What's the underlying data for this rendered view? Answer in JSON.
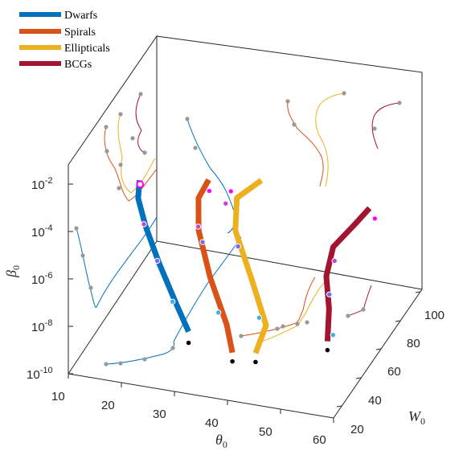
{
  "chart_data": {
    "type": "line",
    "title": "",
    "x_axis": {
      "label": "θ",
      "label_sub": "0",
      "range": [
        10,
        60
      ],
      "ticks": [
        "10",
        "20",
        "30",
        "40",
        "50",
        "60"
      ]
    },
    "y_axis": {
      "label": "W",
      "label_sub": "0",
      "range": [
        20,
        110
      ],
      "ticks": [
        "20",
        "40",
        "60",
        "80",
        "100"
      ]
    },
    "z_axis": {
      "label": "β",
      "label_sub": "0",
      "scale": "log",
      "ticks": [
        {
          "base": "10",
          "exp": "-10"
        },
        {
          "base": "10",
          "exp": "-8"
        },
        {
          "base": "10",
          "exp": "-6"
        },
        {
          "base": "10",
          "exp": "-4"
        },
        {
          "base": "10",
          "exp": "-2"
        }
      ]
    },
    "legend": {
      "position": "top-left",
      "entries": [
        {
          "name": "Dwarfs",
          "color": "#0072BD"
        },
        {
          "name": "Spirals",
          "color": "#D95319"
        },
        {
          "name": "Ellipticals",
          "color": "#EDB120"
        },
        {
          "name": "BCGs",
          "color": "#A2142F"
        }
      ]
    },
    "series": [
      {
        "name": "Dwarfs",
        "color": "#0072BD",
        "thick_points": [
          [
            31,
            29,
            -8
          ],
          [
            27.5,
            35,
            -7.3
          ],
          [
            23,
            42,
            -6.2
          ],
          [
            19,
            50,
            -5.3
          ],
          [
            16.5,
            56,
            -4.6
          ],
          [
            16,
            60,
            -4.1
          ]
        ],
        "dots": [
          [
            16.3,
            59,
            "#ff00ff"
          ],
          [
            18.5,
            51,
            "#cc44cc"
          ],
          [
            22.5,
            43,
            "#7b68ee"
          ],
          [
            26.5,
            37,
            "#40b0e0"
          ]
        ],
        "start": [
          31,
          29,
          -8.2
        ]
      },
      {
        "name": "Spirals",
        "color": "#D95319",
        "thick_points": [
          [
            40,
            25,
            -8.3
          ],
          [
            38,
            30,
            -7.5
          ],
          [
            33,
            40,
            -6.3
          ],
          [
            29,
            50,
            -5.1
          ],
          [
            27.5,
            58,
            -4.3
          ],
          [
            28.5,
            63,
            -3.8
          ]
        ],
        "dots": [
          [
            28.8,
            62,
            "#ff00ff"
          ],
          [
            28,
            55,
            "#cc44cc"
          ],
          [
            30.5,
            46,
            "#7b68ee"
          ],
          [
            35.5,
            35,
            "#40b0e0"
          ]
        ],
        "start": [
          40,
          25,
          -8.4
        ]
      },
      {
        "name": "Ellipticals",
        "color": "#EDB120",
        "thick_points": [
          [
            44,
            27,
            -8.3
          ],
          [
            44.5,
            35,
            -7.6
          ],
          [
            40,
            45,
            -6.5
          ],
          [
            35,
            55,
            -5.2
          ],
          [
            34,
            62,
            -4.3
          ],
          [
            37.5,
            68,
            -3.8
          ]
        ],
        "dots": [
          [
            32.5,
            64,
            "#ff00ff"
          ],
          [
            33,
            56,
            "#cc44cc"
          ],
          [
            37,
            47,
            "#7b68ee"
          ],
          [
            43,
            36,
            "#40b0e0"
          ]
        ],
        "start": [
          44,
          27,
          -8.4
        ]
      },
      {
        "name": "BCGs",
        "color": "#A2142F",
        "thick_points": [
          [
            57,
            30,
            -7.5
          ],
          [
            56,
            37,
            -6.6
          ],
          [
            54,
            45,
            -5.8
          ],
          [
            54,
            52,
            -5.0
          ],
          [
            57,
            58,
            -4.3
          ],
          [
            59,
            62,
            -3.8
          ]
        ],
        "dots": [
          [
            60,
            62,
            "#ff00ff"
          ],
          [
            55,
            48,
            "#cc44cc"
          ],
          [
            55.5,
            40,
            "#7b68ee"
          ],
          [
            57.5,
            33,
            "#40b0e0"
          ]
        ],
        "start": [
          57,
          30,
          -7.6
        ]
      }
    ]
  }
}
